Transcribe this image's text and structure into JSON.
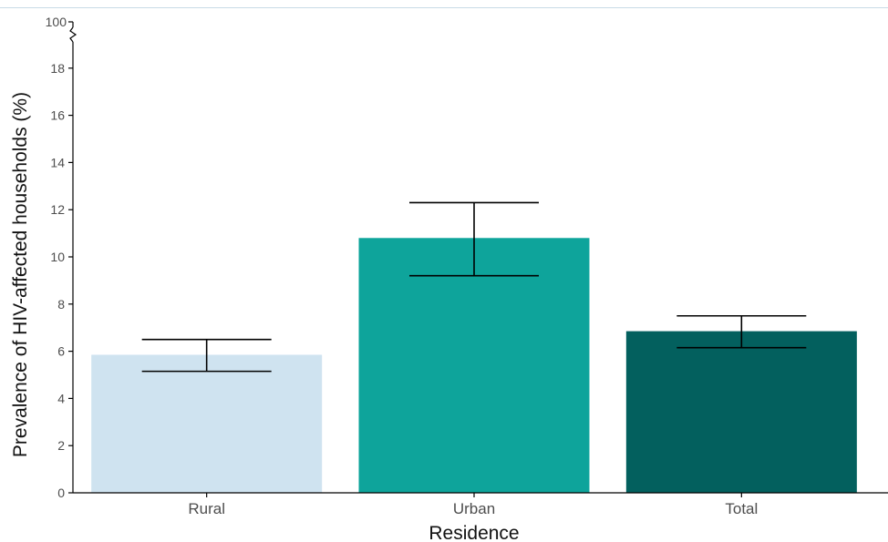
{
  "chart_data": {
    "type": "bar",
    "xlabel": "Residence",
    "ylabel": "Prevalence of HIV-affected households (%)",
    "categories": [
      "Rural",
      "Urban",
      "Total"
    ],
    "values": [
      5.85,
      10.8,
      6.85
    ],
    "error_low": [
      5.15,
      9.2,
      6.15
    ],
    "error_high": [
      6.5,
      12.3,
      7.5
    ],
    "colors": [
      "#cfe3f0",
      "#0ea49b",
      "#03605e"
    ],
    "ylim": [
      0,
      19
    ],
    "yticks": [
      0,
      2,
      4,
      6,
      8,
      10,
      12,
      14,
      16,
      18
    ],
    "ytick_labels": [
      "0",
      "2",
      "4",
      "6",
      "8",
      "10",
      "12",
      "14",
      "16",
      "18"
    ],
    "axis_break": true,
    "axis_break_top_label": "100",
    "grid": false,
    "legend": "none"
  }
}
